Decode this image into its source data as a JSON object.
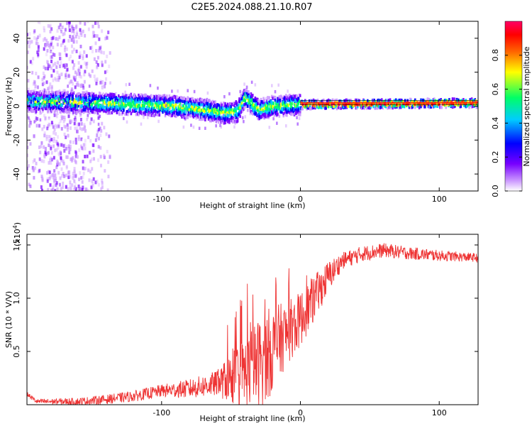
{
  "title": "C2E5.2024.088.21.10.R07",
  "chart_data": [
    {
      "type": "heatmap",
      "name": "spectrogram",
      "xlabel": "Height of straight line (km)",
      "ylabel": "Frequency (Hz)",
      "xlim": [
        -197,
        128
      ],
      "ylim": [
        -50,
        50
      ],
      "xticks": [
        -100,
        0,
        100
      ],
      "xtick_labels": [
        "-100",
        "0",
        "100"
      ],
      "yticks": [
        -40,
        -20,
        0,
        20,
        40
      ],
      "ytick_labels": [
        "-40",
        "-20",
        "0",
        "20",
        "40"
      ],
      "colorbar": {
        "label": "Normalized spectral amplitude",
        "range": [
          0,
          1
        ],
        "ticks": [
          0.0,
          0.2,
          0.4,
          0.6,
          0.8
        ],
        "tick_labels": [
          "0.0",
          "0.2",
          "0.4",
          "0.6",
          "0.8"
        ],
        "colors": [
          "#ffffff",
          "#cc99ff",
          "#7700ff",
          "#0000ff",
          "#00ccff",
          "#00ff66",
          "#ffff00",
          "#ff6600",
          "#ff0000",
          "#ff0066"
        ]
      },
      "band_center_hz": [
        {
          "x": -195,
          "y": 3
        },
        {
          "x": -150,
          "y": 2
        },
        {
          "x": -120,
          "y": 1
        },
        {
          "x": -90,
          "y": 0
        },
        {
          "x": -70,
          "y": -2
        },
        {
          "x": -55,
          "y": -4
        },
        {
          "x": -45,
          "y": -3
        },
        {
          "x": -40,
          "y": 5
        },
        {
          "x": -30,
          "y": -2
        },
        {
          "x": -20,
          "y": 0
        },
        {
          "x": 0,
          "y": 1
        },
        {
          "x": 128,
          "y": 2
        }
      ]
    },
    {
      "type": "line",
      "name": "snr",
      "xlabel": "Height of straight line (km)",
      "ylabel": "SNR (10 * V/V)",
      "yscale_label": "(x10",
      "yscale_exp": "4",
      "xlim": [
        -197,
        128
      ],
      "ylim": [
        0,
        1.6
      ],
      "xticks": [
        -100,
        0,
        100
      ],
      "xtick_labels": [
        "-100",
        "0",
        "100"
      ],
      "yticks": [
        0.5,
        1.0,
        1.5
      ],
      "ytick_labels": [
        "0.5",
        "1.0",
        "1.5"
      ],
      "color": "#ee3333",
      "series": [
        {
          "x": -197,
          "y": 0.1
        },
        {
          "x": -190,
          "y": 0.03
        },
        {
          "x": -160,
          "y": 0.03
        },
        {
          "x": -140,
          "y": 0.05
        },
        {
          "x": -120,
          "y": 0.08
        },
        {
          "x": -100,
          "y": 0.13
        },
        {
          "x": -80,
          "y": 0.15
        },
        {
          "x": -60,
          "y": 0.2
        },
        {
          "x": -40,
          "y": 0.3
        },
        {
          "x": -25,
          "y": 0.45
        },
        {
          "x": -15,
          "y": 0.6
        },
        {
          "x": 0,
          "y": 0.8
        },
        {
          "x": 10,
          "y": 1.0
        },
        {
          "x": 20,
          "y": 1.2
        },
        {
          "x": 30,
          "y": 1.35
        },
        {
          "x": 45,
          "y": 1.42
        },
        {
          "x": 60,
          "y": 1.45
        },
        {
          "x": 80,
          "y": 1.42
        },
        {
          "x": 100,
          "y": 1.4
        },
        {
          "x": 128,
          "y": 1.38
        }
      ],
      "noise_amp": [
        {
          "x": -197,
          "a": 0.02
        },
        {
          "x": -100,
          "a": 0.06
        },
        {
          "x": -60,
          "a": 0.12
        },
        {
          "x": -45,
          "a": 0.3
        },
        {
          "x": -25,
          "a": 0.45
        },
        {
          "x": -10,
          "a": 0.3
        },
        {
          "x": 10,
          "a": 0.22
        },
        {
          "x": 30,
          "a": 0.08
        },
        {
          "x": 128,
          "a": 0.04
        }
      ]
    }
  ]
}
